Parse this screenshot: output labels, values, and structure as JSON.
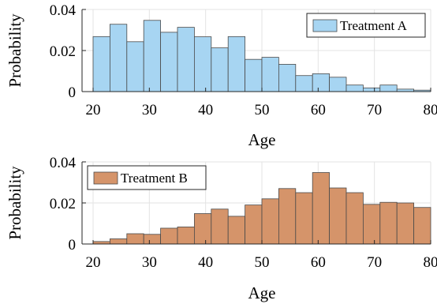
{
  "chart_data": [
    {
      "type": "bar",
      "subtype": "histogram",
      "bin_edges": [
        20,
        23,
        26,
        29,
        32,
        35,
        38,
        41,
        44,
        47,
        50,
        53,
        56,
        59,
        62,
        65,
        68,
        71,
        74,
        77,
        80
      ],
      "values": [
        0.0268,
        0.0328,
        0.0243,
        0.0347,
        0.0289,
        0.0313,
        0.0267,
        0.0213,
        0.0268,
        0.0157,
        0.0167,
        0.0133,
        0.0078,
        0.0087,
        0.007,
        0.0032,
        0.0018,
        0.0032,
        0.0012,
        0.0007
      ],
      "xlabel": "Age",
      "ylabel": "Probability",
      "xlim": [
        20,
        80
      ],
      "ylim": [
        0,
        0.04
      ],
      "xticks": [
        "20",
        "30",
        "40",
        "50",
        "60",
        "70",
        "80"
      ],
      "yticks": [
        "0",
        "0.02",
        "0.04"
      ],
      "grid": true,
      "legend": {
        "entries": [
          "Treatment A"
        ],
        "placement": "top-right"
      },
      "color": "#a7d5f2",
      "edge_color": "#4a4a4a"
    },
    {
      "type": "bar",
      "subtype": "histogram",
      "bin_edges": [
        20,
        23,
        26,
        29,
        32,
        35,
        38,
        41,
        44,
        47,
        50,
        53,
        56,
        59,
        62,
        65,
        68,
        71,
        74,
        77,
        80
      ],
      "values": [
        0.0012,
        0.0025,
        0.005,
        0.0047,
        0.0077,
        0.0083,
        0.0148,
        0.017,
        0.0135,
        0.019,
        0.022,
        0.027,
        0.025,
        0.0348,
        0.0273,
        0.025,
        0.0193,
        0.0203,
        0.02,
        0.0178
      ],
      "xlabel": "Age",
      "ylabel": "Probability",
      "xlim": [
        20,
        80
      ],
      "ylim": [
        0,
        0.04
      ],
      "xticks": [
        "20",
        "30",
        "40",
        "50",
        "60",
        "70",
        "80"
      ],
      "yticks": [
        "0",
        "0.02",
        "0.04"
      ],
      "grid": true,
      "legend": {
        "entries": [
          "Treatment B"
        ],
        "placement": "top-left"
      },
      "color": "#d5946a",
      "edge_color": "#4a4a4a"
    }
  ]
}
